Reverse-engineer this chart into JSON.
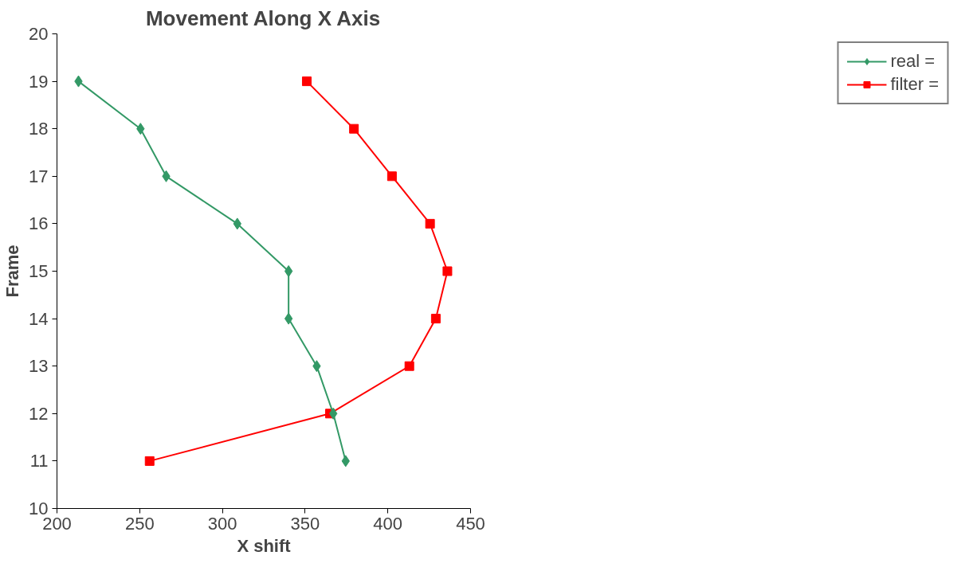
{
  "chart_data": {
    "type": "line",
    "title": "Movement Along X Axis",
    "xlabel": "X shift",
    "ylabel": "Frame",
    "xlim": [
      200,
      450
    ],
    "xticks": [
      200,
      250,
      300,
      350,
      400,
      450
    ],
    "ylim": [
      10,
      20
    ],
    "yticks": [
      10,
      11,
      12,
      13,
      14,
      15,
      16,
      17,
      18,
      19,
      20
    ],
    "grid": false,
    "legend": "right",
    "series": [
      {
        "name": "real =",
        "color": "#339966",
        "marker": "diamond",
        "x": [
          213,
          250.5,
          266,
          309,
          340,
          340,
          357,
          367,
          374.5
        ],
        "values": [
          19,
          18,
          17,
          16,
          15,
          14,
          13,
          12,
          11
        ]
      },
      {
        "name": "filter =",
        "color": "#ff0000",
        "marker": "square",
        "x": [
          351,
          379.5,
          402.5,
          425.5,
          436,
          429,
          413,
          365,
          256
        ],
        "values": [
          19,
          18,
          17,
          16,
          15,
          14,
          13,
          12,
          11
        ]
      }
    ]
  }
}
